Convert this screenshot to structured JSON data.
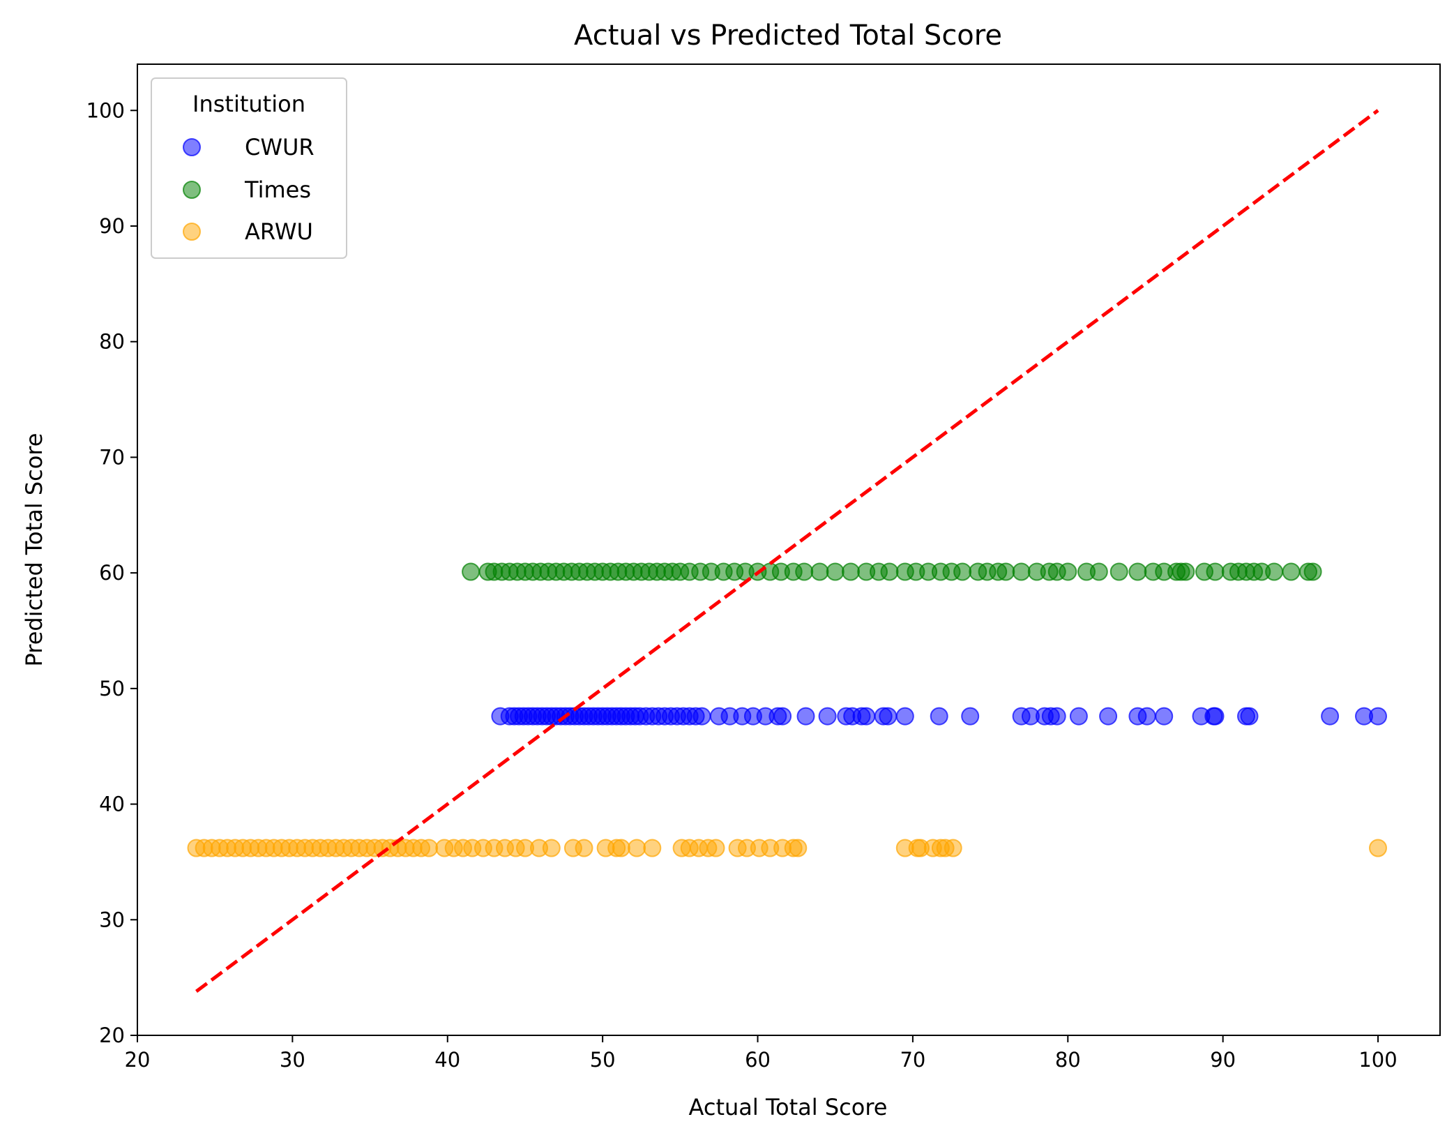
{
  "chart_data": {
    "type": "scatter",
    "title": "Actual vs Predicted Total Score",
    "xlabel": "Actual Total Score",
    "ylabel": "Predicted Total Score",
    "xlim": [
      20,
      104
    ],
    "ylim": [
      20,
      104
    ],
    "x_ticks": [
      20,
      30,
      40,
      50,
      60,
      70,
      80,
      90,
      100
    ],
    "y_ticks": [
      20,
      30,
      40,
      50,
      60,
      70,
      80,
      90,
      100
    ],
    "x_tick_labels": [
      "20",
      "30",
      "40",
      "50",
      "60",
      "70",
      "80",
      "90",
      "100"
    ],
    "y_tick_labels": [
      "20",
      "30",
      "40",
      "50",
      "60",
      "70",
      "80",
      "90",
      "100"
    ],
    "grid": false,
    "legend": {
      "title": "Institution",
      "placement": "top-left"
    },
    "reference_line": {
      "style": "dashed",
      "color": "#ff0000",
      "from": [
        23.8,
        23.8
      ],
      "to": [
        100,
        100
      ]
    },
    "series": [
      {
        "name": "CWUR",
        "color": "#0000ff",
        "y": 47.6,
        "x": [
          43.4,
          44.0,
          44.3,
          44.6,
          44.9,
          45.2,
          45.5,
          45.8,
          46.1,
          46.4,
          46.7,
          47.0,
          47.3,
          47.6,
          47.9,
          48.2,
          48.5,
          48.8,
          49.1,
          49.4,
          49.7,
          50.0,
          50.3,
          50.6,
          50.9,
          51.2,
          51.5,
          51.8,
          52.1,
          52.4,
          52.8,
          53.2,
          53.6,
          54.0,
          54.4,
          54.8,
          55.2,
          55.6,
          56.0,
          56.4,
          57.5,
          58.2,
          59.0,
          59.7,
          60.5,
          61.3,
          61.6,
          63.1,
          64.5,
          65.7,
          66.1,
          66.7,
          67.0,
          68.1,
          68.4,
          69.5,
          71.7,
          73.7,
          77.0,
          77.6,
          78.5,
          78.9,
          79.3,
          80.7,
          82.6,
          84.5,
          85.1,
          86.2,
          88.6,
          89.4,
          89.5,
          91.5,
          91.7,
          96.9,
          99.1,
          100.0
        ]
      },
      {
        "name": "Times",
        "color": "#008000",
        "y": 60.1,
        "x": [
          41.5,
          42.6,
          43.0,
          43.5,
          44.0,
          44.5,
          45.0,
          45.5,
          46.0,
          46.5,
          47.0,
          47.5,
          48.0,
          48.5,
          49.0,
          49.5,
          50.0,
          50.5,
          51.0,
          51.5,
          52.0,
          52.5,
          53.0,
          53.5,
          54.0,
          54.5,
          55.0,
          55.6,
          56.3,
          57.0,
          57.8,
          58.5,
          59.2,
          60.0,
          60.8,
          61.5,
          62.3,
          63.0,
          64.0,
          65.0,
          66.0,
          67.0,
          67.8,
          68.5,
          69.5,
          70.2,
          71.0,
          71.8,
          72.5,
          73.2,
          74.2,
          74.8,
          75.5,
          76.0,
          77.0,
          78.0,
          78.8,
          79.3,
          80.0,
          81.2,
          82.0,
          83.3,
          84.5,
          85.5,
          86.2,
          87.0,
          87.3,
          87.6,
          88.8,
          89.5,
          90.5,
          91.0,
          91.5,
          92.0,
          92.5,
          93.3,
          94.4,
          95.5,
          95.8
        ]
      },
      {
        "name": "ARWU",
        "color": "#ffa500",
        "y": 36.2,
        "x": [
          23.8,
          24.3,
          24.8,
          25.3,
          25.8,
          26.3,
          26.8,
          27.3,
          27.8,
          28.3,
          28.8,
          29.3,
          29.8,
          30.3,
          30.8,
          31.3,
          31.8,
          32.3,
          32.8,
          33.3,
          33.8,
          34.3,
          34.8,
          35.3,
          35.8,
          36.3,
          36.8,
          37.3,
          37.8,
          38.3,
          38.8,
          39.8,
          40.4,
          41.0,
          41.6,
          42.3,
          43.0,
          43.7,
          44.4,
          45.0,
          45.9,
          46.7,
          48.1,
          48.8,
          50.2,
          50.9,
          51.2,
          52.2,
          53.2,
          55.1,
          55.6,
          56.2,
          56.8,
          57.3,
          58.7,
          59.3,
          60.1,
          60.8,
          61.6,
          62.3,
          62.6,
          69.5,
          70.3,
          70.5,
          71.3,
          71.8,
          72.1,
          72.6,
          100.0
        ]
      }
    ]
  }
}
